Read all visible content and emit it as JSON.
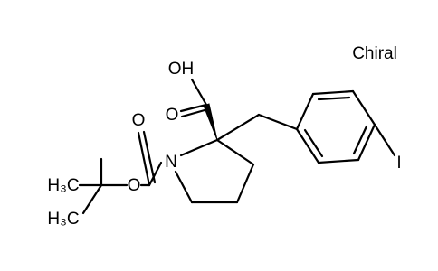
{
  "note_label": "Chiral",
  "atoms": [
    {
      "label": "OH"
    },
    {
      "label": "O"
    },
    {
      "label": "N"
    },
    {
      "label": "O"
    },
    {
      "label": "O"
    },
    {
      "label": "H₃C"
    },
    {
      "label": "H₃C"
    },
    {
      "label": "I"
    }
  ]
}
